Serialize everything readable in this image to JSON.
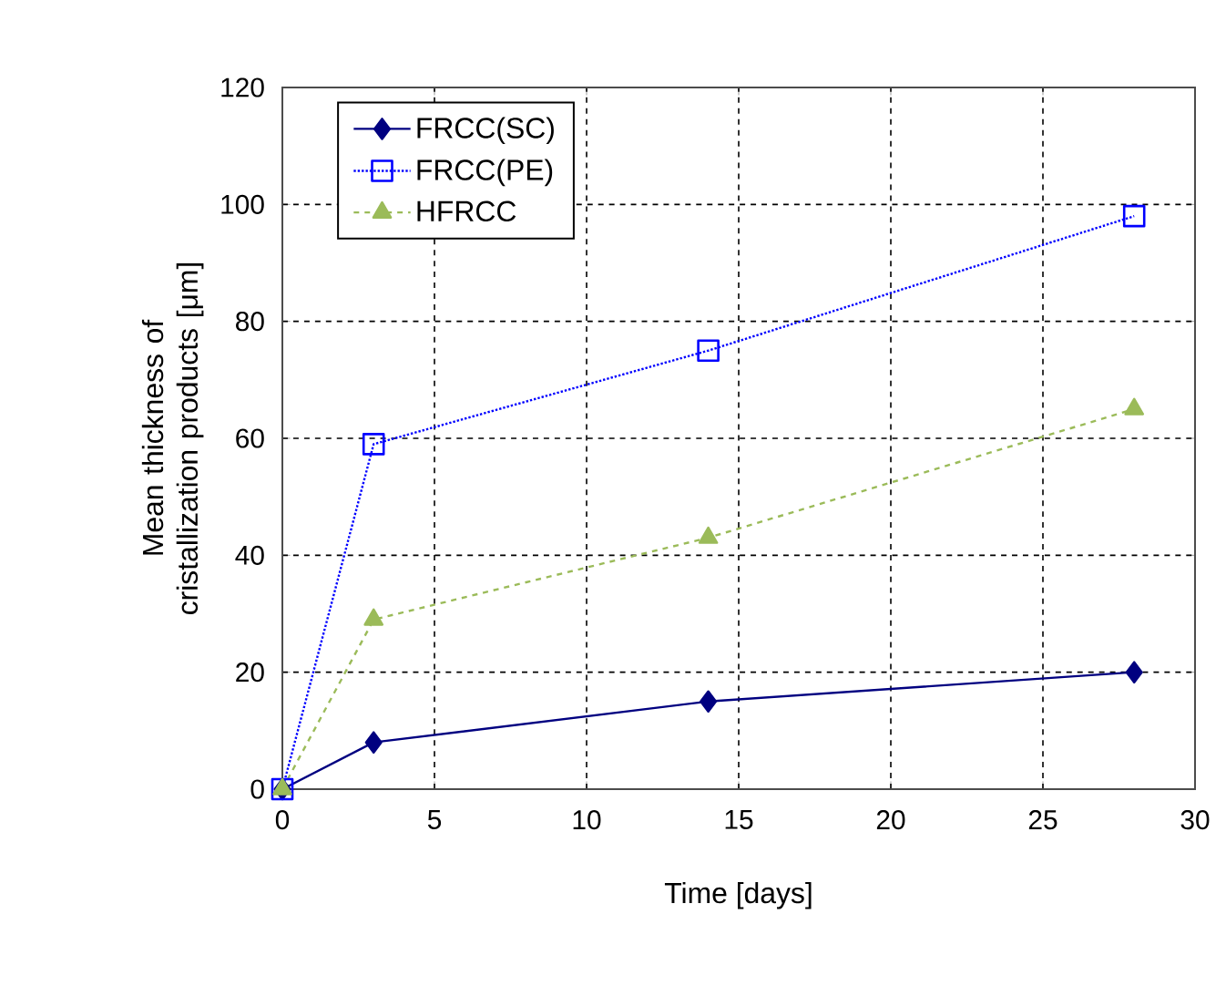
{
  "chart_data": {
    "type": "line",
    "xlabel": "Time [days]",
    "ylabel": "Mean thickness of cristallization products [μm]",
    "x": [
      0,
      3,
      14,
      28
    ],
    "series": [
      {
        "name": "FRCC(SC)",
        "color": "#000080",
        "values": [
          0,
          8,
          15,
          20
        ],
        "marker": "diamond",
        "line_style": "solid"
      },
      {
        "name": "FRCC(PE)",
        "color": "#0000ff",
        "values": [
          0,
          59,
          75,
          98
        ],
        "marker": "square",
        "line_style": "dotted"
      },
      {
        "name": "HFRCC",
        "color": "#9bbb59",
        "values": [
          0,
          29,
          43,
          65
        ],
        "marker": "triangle",
        "line_style": "dashed"
      }
    ],
    "xlim": [
      0,
      30
    ],
    "xticks": [
      0,
      5,
      10,
      15,
      20,
      25,
      30
    ],
    "ylim": [
      0,
      120
    ],
    "yticks": [
      0,
      20,
      40,
      60,
      80,
      100,
      120
    ],
    "grid": true,
    "legend": "top left"
  }
}
